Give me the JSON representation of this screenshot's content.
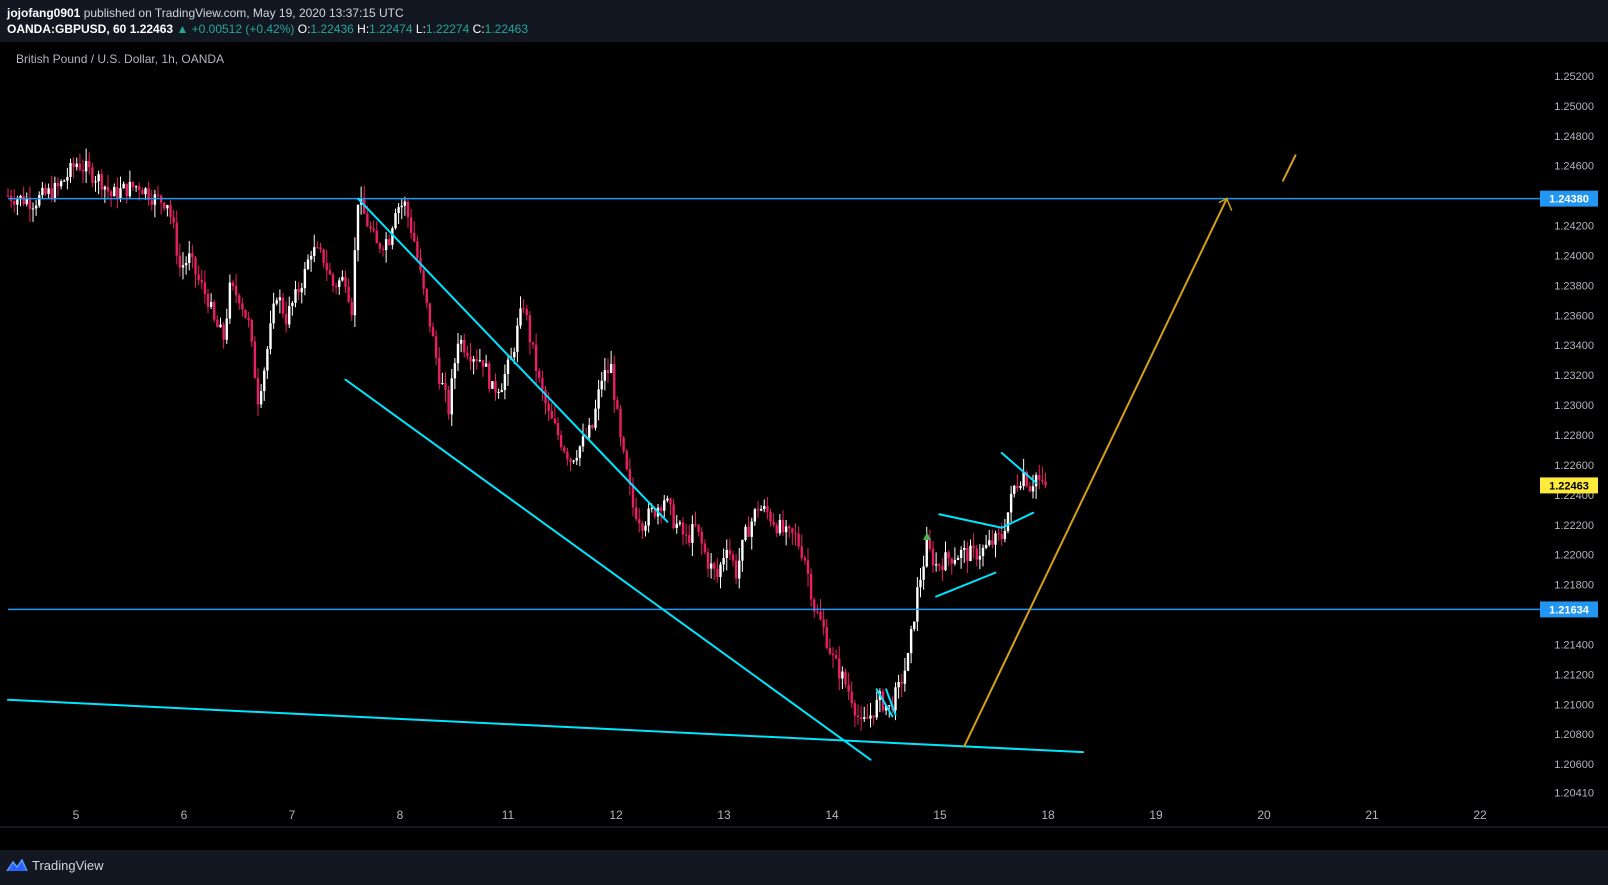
{
  "header": {
    "author": "jojofang0901",
    "published_text": "published on TradingView.com, May 19, 2020 13:37:15 UTC",
    "symbol": "OANDA:GBPUSD, 60",
    "last": "1.22463",
    "change": "▲ +0.00512 (+0.42%)",
    "o_label": "O:",
    "o": "1.22436",
    "h_label": "H:",
    "h": "1.22474",
    "l_label": "L:",
    "l": "1.22274",
    "c_label": "C:",
    "c": "1.22463"
  },
  "pane_title": "British Pound / U.S. Dollar, 1h, OANDA",
  "footer": {
    "brand": "TradingView",
    "logo_icon": "tradingview-logo-icon"
  },
  "colors": {
    "up_candle": "#ffffff",
    "down_candle": "#e91e63",
    "trendline": "#00e5ff",
    "horizontal_line": "#2196f3",
    "projection_arrow": "#d4a017",
    "price_tag_current": "#ffeb3b",
    "price_tag_level": "#2196f3",
    "axis_text": "#b2b5be",
    "background": "#000000"
  },
  "chart_data": {
    "type": "candlestick",
    "x_axis": {
      "ticks": [
        "5",
        "6",
        "7",
        "8",
        "11",
        "12",
        "13",
        "14",
        "15",
        "18",
        "19",
        "20",
        "21",
        "22"
      ]
    },
    "y_axis": {
      "ticks": [
        "1.25200",
        "1.25000",
        "1.24800",
        "1.24600",
        "1.24200",
        "1.24000",
        "1.23800",
        "1.23600",
        "1.23400",
        "1.23200",
        "1.23000",
        "1.22800",
        "1.22600",
        "1.22400",
        "1.22200",
        "1.22000",
        "1.21800",
        "1.21400",
        "1.21200",
        "1.21000",
        "1.20800",
        "1.20600",
        "1.20410"
      ],
      "range": [
        1.203,
        1.253
      ]
    },
    "price_tags": [
      {
        "label": "1.24380",
        "value": 1.2438,
        "kind": "level"
      },
      {
        "label": "1.22463",
        "value": 1.22463,
        "kind": "current"
      },
      {
        "label": "1.21634",
        "value": 1.21634,
        "kind": "level"
      }
    ],
    "horizontal_levels": [
      1.2438,
      1.21634
    ],
    "path": [
      [
        0,
        1.244
      ],
      [
        8,
        1.2436
      ],
      [
        16,
        1.2445
      ],
      [
        22,
        1.2462
      ],
      [
        30,
        1.245
      ],
      [
        33,
        1.244
      ],
      [
        37,
        1.2444
      ],
      [
        42,
        1.2447
      ],
      [
        47,
        1.2438
      ],
      [
        51,
        1.2436
      ],
      [
        53,
        1.2417
      ],
      [
        55,
        1.2392
      ],
      [
        58,
        1.2398
      ],
      [
        61,
        1.2383
      ],
      [
        64,
        1.2371
      ],
      [
        66,
        1.2355
      ],
      [
        69,
        1.2345
      ],
      [
        71,
        1.2377
      ],
      [
        74,
        1.2373
      ],
      [
        77,
        1.2354
      ],
      [
        80,
        1.2305
      ],
      [
        82,
        1.2325
      ],
      [
        86,
        1.2375
      ],
      [
        89,
        1.2358
      ],
      [
        92,
        1.2372
      ],
      [
        95,
        1.2388
      ],
      [
        97,
        1.2404
      ],
      [
        101,
        1.2398
      ],
      [
        104,
        1.238
      ],
      [
        108,
        1.2385
      ],
      [
        110,
        1.2365
      ],
      [
        112,
        1.2438
      ],
      [
        114,
        1.2427
      ],
      [
        118,
        1.2406
      ],
      [
        122,
        1.2412
      ],
      [
        124,
        1.2433
      ],
      [
        127,
        1.2434
      ],
      [
        130,
        1.241
      ],
      [
        133,
        1.2375
      ],
      [
        135,
        1.2355
      ],
      [
        138,
        1.232
      ],
      [
        141,
        1.2297
      ],
      [
        144,
        1.2345
      ],
      [
        148,
        1.2335
      ],
      [
        152,
        1.233
      ],
      [
        155,
        1.231
      ],
      [
        158,
        1.2315
      ],
      [
        161,
        1.233
      ],
      [
        163,
        1.235
      ],
      [
        165,
        1.2368
      ],
      [
        167,
        1.2345
      ],
      [
        170,
        1.2315
      ],
      [
        173,
        1.2293
      ],
      [
        177,
        1.2276
      ],
      [
        180,
        1.2264
      ],
      [
        184,
        1.2275
      ],
      [
        187,
        1.2285
      ],
      [
        190,
        1.2318
      ],
      [
        193,
        1.2325
      ],
      [
        196,
        1.2275
      ],
      [
        200,
        1.2232
      ],
      [
        203,
        1.2222
      ],
      [
        207,
        1.223
      ],
      [
        210,
        1.2238
      ],
      [
        213,
        1.2223
      ],
      [
        217,
        1.221
      ],
      [
        220,
        1.2218
      ],
      [
        224,
        1.2195
      ],
      [
        227,
        1.2185
      ],
      [
        230,
        1.2208
      ],
      [
        233,
        1.2188
      ],
      [
        236,
        1.2213
      ],
      [
        240,
        1.2232
      ],
      [
        243,
        1.2228
      ],
      [
        246,
        1.222
      ],
      [
        249,
        1.2213
      ],
      [
        252,
        1.2212
      ],
      [
        255,
        1.2198
      ],
      [
        258,
        1.2165
      ],
      [
        261,
        1.215
      ],
      [
        264,
        1.213
      ],
      [
        267,
        1.2118
      ],
      [
        270,
        1.2105
      ],
      [
        273,
        1.2085
      ],
      [
        276,
        1.2093
      ],
      [
        279,
        1.2103
      ],
      [
        282,
        1.2097
      ],
      [
        285,
        1.211
      ],
      [
        288,
        1.213
      ],
      [
        291,
        1.2175
      ],
      [
        294,
        1.2205
      ],
      [
        297,
        1.2193
      ],
      [
        301,
        1.2198
      ],
      [
        305,
        1.2201
      ],
      [
        309,
        1.22
      ],
      [
        312,
        1.2203
      ],
      [
        315,
        1.2208
      ],
      [
        318,
        1.2212
      ],
      [
        322,
        1.2245
      ],
      [
        325,
        1.2255
      ],
      [
        327,
        1.2246
      ],
      [
        329,
        1.2253
      ],
      [
        331,
        1.2245
      ],
      [
        332,
        1.22463
      ]
    ],
    "drawings": [
      {
        "type": "line",
        "color": "trendline",
        "points": [
          [
            112,
            1.2438
          ],
          [
            211,
            1.2222
          ]
        ]
      },
      {
        "type": "line",
        "color": "trendline",
        "points": [
          [
            108,
            1.2317
          ],
          [
            276,
            1.2063
          ]
        ]
      },
      {
        "type": "line",
        "color": "trendline",
        "points": [
          [
            0,
            1.2103
          ],
          [
            344,
            1.2068
          ]
        ]
      },
      {
        "type": "line",
        "color": "trendline",
        "points": [
          [
            281,
            1.211
          ],
          [
            284,
            1.2093
          ]
        ]
      },
      {
        "type": "line",
        "color": "trendline",
        "points": [
          [
            278,
            1.211
          ],
          [
            283,
            1.2092
          ]
        ]
      },
      {
        "type": "line",
        "color": "trendline",
        "points": [
          [
            297,
            1.2172
          ],
          [
            316,
            1.2188
          ]
        ]
      },
      {
        "type": "line",
        "color": "trendline",
        "points": [
          [
            298,
            1.2227
          ],
          [
            318,
            1.2218
          ]
        ]
      },
      {
        "type": "line",
        "color": "trendline",
        "points": [
          [
            318,
            1.2218
          ],
          [
            328,
            1.2228
          ]
        ]
      },
      {
        "type": "line",
        "color": "trendline",
        "points": [
          [
            318,
            1.2268
          ],
          [
            329,
            1.2248
          ]
        ]
      },
      {
        "type": "line",
        "color": "projection_arrow",
        "points": [
          [
            306,
            1.2072
          ],
          [
            390,
            1.2438
          ]
        ]
      },
      {
        "type": "line",
        "color": "projection_arrow",
        "points": [
          [
            408,
            1.245
          ],
          [
            412,
            1.2467
          ]
        ]
      }
    ]
  }
}
